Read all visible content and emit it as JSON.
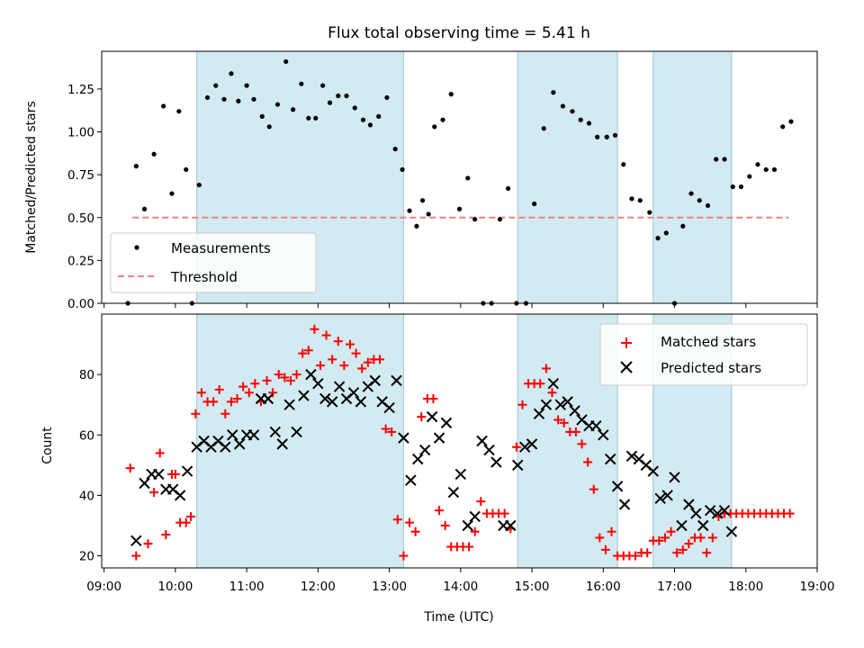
{
  "chart_data": [
    {
      "type": "scatter",
      "title": "Flux total observing time = 5.41 h",
      "xlabel": "",
      "ylabel": "Matched/Predicted stars",
      "ylim": [
        0,
        1.47
      ],
      "yticks": [
        "0.00",
        "0.25",
        "0.50",
        "0.75",
        "1.00",
        "1.25"
      ],
      "ytick_values": [
        0,
        0.25,
        0.5,
        0.75,
        1.0,
        1.25
      ],
      "legend_position": "lower-left",
      "colors": {
        "measurements": "#000000",
        "threshold": "#f08080",
        "span": "#add8e6"
      },
      "series": [
        {
          "name": "Measurements",
          "x": [
            "09:20",
            "09:27",
            "09:34",
            "09:42",
            "09:50",
            "09:57",
            "10:03",
            "10:09",
            "10:14",
            "10:20",
            "10:27",
            "10:34",
            "10:41",
            "10:47",
            "10:53",
            "11:00",
            "11:06",
            "11:13",
            "11:19",
            "11:26",
            "11:33",
            "11:39",
            "11:46",
            "11:52",
            "11:58",
            "12:04",
            "12:10",
            "12:17",
            "12:24",
            "12:31",
            "12:38",
            "12:44",
            "12:51",
            "12:58",
            "13:05",
            "13:11",
            "13:17",
            "13:23",
            "13:28",
            "13:33",
            "13:38",
            "13:45",
            "13:52",
            "13:59",
            "14:06",
            "14:12",
            "14:19",
            "14:26",
            "14:33",
            "14:40",
            "14:47",
            "14:55",
            "15:02",
            "15:10",
            "15:18",
            "15:26",
            "15:34",
            "15:41",
            "15:48",
            "15:55",
            "16:03",
            "16:10",
            "16:17",
            "16:24",
            "16:31",
            "16:39",
            "16:46",
            "16:53",
            "17:00",
            "17:07",
            "17:14",
            "17:21",
            "17:28",
            "17:35",
            "17:42",
            "17:49",
            "17:56",
            "18:03",
            "18:10",
            "18:17",
            "18:24",
            "18:31",
            "18:38"
          ],
          "y": [
            0.0,
            0.8,
            0.55,
            0.87,
            1.15,
            0.64,
            1.12,
            0.78,
            0.0,
            0.69,
            1.2,
            1.27,
            1.19,
            1.34,
            1.18,
            1.27,
            1.19,
            1.09,
            1.03,
            1.16,
            1.41,
            1.13,
            1.28,
            1.08,
            1.08,
            1.27,
            1.17,
            1.21,
            1.21,
            1.14,
            1.07,
            1.04,
            1.09,
            1.2,
            0.9,
            0.78,
            0.54,
            0.45,
            0.6,
            0.52,
            1.03,
            1.07,
            1.22,
            0.55,
            0.73,
            0.49,
            0.0,
            0.0,
            0.49,
            0.67,
            0.0,
            0.0,
            0.58,
            1.02,
            1.23,
            1.15,
            1.12,
            1.07,
            1.05,
            0.97,
            0.97,
            0.98,
            0.81,
            0.61,
            0.6,
            0.53,
            0.38,
            0.41,
            0.0,
            0.45,
            0.64,
            0.6,
            0.57,
            0.84,
            0.84,
            0.68,
            0.68,
            0.74,
            0.81,
            0.78,
            0.78,
            1.03,
            1.06
          ]
        },
        {
          "name": "Threshold",
          "x": [
            "09:24",
            "18:36"
          ],
          "y": [
            0.5,
            0.5
          ]
        }
      ],
      "shaded_spans": [
        [
          "10:18",
          "13:12"
        ],
        [
          "14:48",
          "16:12"
        ],
        [
          "16:42",
          "17:48"
        ]
      ]
    },
    {
      "type": "scatter",
      "title": "",
      "xlabel": "Time (UTC)",
      "ylabel": "Count",
      "ylim": [
        16,
        100
      ],
      "yticks": [
        "20",
        "40",
        "60",
        "80"
      ],
      "ytick_values": [
        20,
        40,
        60,
        80
      ],
      "xlim": [
        "08:58",
        "19:00"
      ],
      "xticks": [
        "09:00",
        "10:00",
        "11:00",
        "12:00",
        "13:00",
        "14:00",
        "15:00",
        "16:00",
        "17:00",
        "18:00",
        "19:00"
      ],
      "legend_position": "upper-right",
      "colors": {
        "matched": "#ff0000",
        "predicted": "#000000"
      },
      "series": [
        {
          "name": "Matched stars",
          "x": [
            "09:22",
            "09:27",
            "09:37",
            "09:42",
            "09:47",
            "09:52",
            "09:57",
            "10:00",
            "10:04",
            "10:09",
            "10:13",
            "10:17",
            "10:22",
            "10:27",
            "10:32",
            "10:37",
            "10:42",
            "10:47",
            "10:52",
            "10:57",
            "11:02",
            "11:07",
            "11:12",
            "11:17",
            "11:22",
            "11:27",
            "11:32",
            "11:37",
            "11:42",
            "11:47",
            "11:52",
            "11:57",
            "12:02",
            "12:07",
            "12:12",
            "12:17",
            "12:22",
            "12:27",
            "12:32",
            "12:37",
            "12:42",
            "12:47",
            "12:52",
            "12:57",
            "13:02",
            "13:07",
            "13:12",
            "13:17",
            "13:22",
            "13:27",
            "13:32",
            "13:37",
            "13:42",
            "13:47",
            "13:52",
            "13:57",
            "14:02",
            "14:07",
            "14:12",
            "14:17",
            "14:22",
            "14:27",
            "14:32",
            "14:37",
            "14:42",
            "14:47",
            "14:52",
            "14:57",
            "15:02",
            "15:07",
            "15:12",
            "15:17",
            "15:22",
            "15:27",
            "15:32",
            "15:37",
            "15:42",
            "15:47",
            "15:52",
            "15:57",
            "16:02",
            "16:07",
            "16:12",
            "16:17",
            "16:22",
            "16:27",
            "16:32",
            "16:37",
            "16:42",
            "16:47",
            "16:52",
            "16:57",
            "17:02",
            "17:07",
            "17:12",
            "17:17",
            "17:22",
            "17:27",
            "17:32",
            "17:37",
            "17:42",
            "17:47",
            "17:52",
            "17:57",
            "18:02",
            "18:07",
            "18:12",
            "18:17",
            "18:22",
            "18:27",
            "18:32",
            "18:37"
          ],
          "y": [
            49,
            20,
            24,
            41,
            54,
            27,
            47,
            47,
            31,
            31,
            33,
            67,
            74,
            71,
            71,
            75,
            67,
            71,
            72,
            76,
            74,
            77,
            71,
            78,
            74,
            80,
            79,
            78,
            80,
            87,
            88,
            95,
            83,
            93,
            85,
            91,
            83,
            90,
            87,
            82,
            84,
            85,
            85,
            62,
            61,
            32,
            20,
            31,
            28,
            66,
            72,
            72,
            35,
            30,
            23,
            23,
            23,
            23,
            28,
            38,
            34,
            34,
            34,
            34,
            29,
            56,
            70,
            77,
            77,
            77,
            82,
            74,
            65,
            64,
            61,
            61,
            57,
            51,
            42,
            26,
            22,
            28,
            20,
            20,
            20,
            20,
            21,
            21,
            25,
            25,
            26,
            28,
            21,
            22,
            24,
            26,
            26,
            21,
            26,
            33,
            34,
            34,
            34,
            34,
            34,
            34,
            34,
            34,
            34,
            34,
            34,
            34
          ]
        },
        {
          "name": "Predicted stars",
          "x": [
            "09:27",
            "09:34",
            "09:40",
            "09:46",
            "09:52",
            "09:58",
            "10:04",
            "10:10",
            "10:18",
            "10:24",
            "10:30",
            "10:36",
            "10:42",
            "10:48",
            "10:54",
            "11:00",
            "11:06",
            "11:12",
            "11:18",
            "11:24",
            "11:30",
            "11:36",
            "11:42",
            "11:48",
            "11:54",
            "12:00",
            "12:06",
            "12:12",
            "12:18",
            "12:24",
            "12:30",
            "12:36",
            "12:42",
            "12:48",
            "12:54",
            "13:00",
            "13:06",
            "13:12",
            "13:18",
            "13:24",
            "13:30",
            "13:36",
            "13:42",
            "13:48",
            "13:54",
            "14:00",
            "14:06",
            "14:12",
            "14:18",
            "14:24",
            "14:30",
            "14:36",
            "14:42",
            "14:48",
            "14:54",
            "15:00",
            "15:06",
            "15:12",
            "15:18",
            "15:24",
            "15:30",
            "15:36",
            "15:42",
            "15:48",
            "15:54",
            "16:00",
            "16:06",
            "16:12",
            "16:18",
            "16:24",
            "16:30",
            "16:36",
            "16:42",
            "16:48",
            "16:54",
            "17:00",
            "17:06",
            "17:12",
            "17:18",
            "17:24",
            "17:30",
            "17:36",
            "17:42",
            "17:48"
          ],
          "y": [
            25,
            44,
            47,
            47,
            42,
            42,
            40,
            48,
            56,
            58,
            56,
            58,
            56,
            60,
            57,
            60,
            60,
            72,
            72,
            61,
            57,
            70,
            61,
            73,
            80,
            77,
            72,
            71,
            76,
            72,
            74,
            71,
            76,
            78,
            71,
            69,
            78,
            59,
            45,
            52,
            55,
            66,
            59,
            64,
            41,
            47,
            30,
            33,
            58,
            55,
            51,
            30,
            30,
            50,
            56,
            57,
            67,
            70,
            77,
            70,
            71,
            68,
            65,
            63,
            63,
            60,
            52,
            43,
            37,
            53,
            52,
            50,
            48,
            39,
            40,
            46,
            30,
            37,
            34,
            30,
            35,
            34,
            35,
            28
          ]
        }
      ],
      "shaded_spans": [
        [
          "10:18",
          "13:12"
        ],
        [
          "14:48",
          "16:12"
        ],
        [
          "16:42",
          "17:48"
        ]
      ]
    }
  ],
  "legend": {
    "measurements_label": "Measurements",
    "threshold_label": "Threshold",
    "matched_label": "Matched stars",
    "predicted_label": "Predicted stars"
  }
}
